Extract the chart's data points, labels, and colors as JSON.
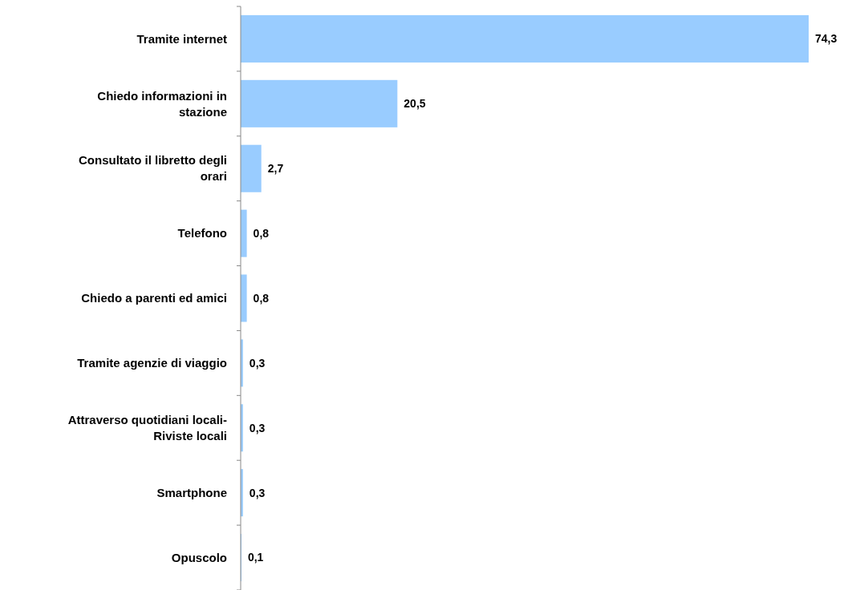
{
  "chart_data": {
    "type": "bar",
    "orientation": "horizontal",
    "value_labels": [
      "74,3",
      "20,5",
      "2,7",
      "0,8",
      "0,8",
      "0,3",
      "0,3",
      "0,3",
      "0,1"
    ],
    "categories": [
      "Tramite internet",
      "Chiedo informazioni in stazione",
      "Consultato il libretto degli orari",
      "Telefono",
      "Chiedo a parenti ed amici",
      "Tramite agenzie di viaggio",
      "Attraverso quotidiani locali-Riviste locali",
      "Smartphone",
      "Opuscolo"
    ],
    "values": [
      74.3,
      20.5,
      2.7,
      0.8,
      0.8,
      0.3,
      0.3,
      0.3,
      0.1
    ],
    "color": "#99ccff"
  }
}
